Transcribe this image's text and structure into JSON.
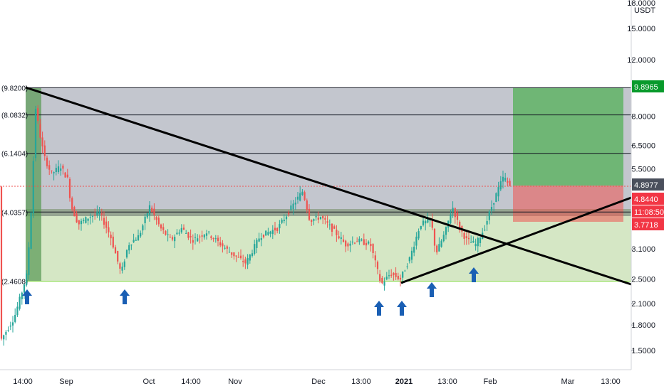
{
  "chart_data": {
    "type": "candlestick",
    "y_axis": {
      "scale": "log",
      "unit_label": "USDT",
      "range": [
        1.25,
        18.5
      ],
      "ticks": [
        "18.0000",
        "15.0000",
        "12.0000",
        "9.8965",
        "8.0000",
        "6.5000",
        "5.5000",
        "4.8977",
        "4.8440",
        "3.7718",
        "3.1000",
        "2.5000",
        "2.1000",
        "1.8000",
        "1.5000"
      ],
      "tick_values": [
        18.0,
        15.0,
        12.0,
        8.0,
        6.5,
        5.5,
        3.1,
        2.5,
        2.1,
        1.8,
        1.5
      ]
    },
    "x_axis": {
      "labels": [
        "14:00",
        "Sep",
        "Oct",
        "14:00",
        "Nov",
        "Dec",
        "13:00",
        "2021",
        "13:00",
        "Feb",
        "Mar",
        "13:00"
      ],
      "bold": [
        "2021"
      ]
    },
    "fib_levels": [
      {
        "label": "(9.8200)",
        "value": 9.82,
        "color": "#131722"
      },
      {
        "label": "(8.0832)",
        "value": 8.0832,
        "color": "#131722"
      },
      {
        "label": "(6.1404)",
        "value": 6.1404,
        "color": "#131722"
      },
      {
        "label": "(4.0357)",
        "value": 4.0357,
        "color": "#131722"
      },
      {
        "label": "(2.4608)",
        "value": 2.4608,
        "color": "#7cd63a"
      }
    ],
    "price_tags": [
      {
        "text": "9.8965",
        "value": 9.8965,
        "bg": "#089a2b"
      },
      {
        "text": "4.8977",
        "value": 4.8977,
        "bg": "#4a4f5c"
      },
      {
        "text": "4.8440",
        "value": 4.844,
        "bg": "#f23645"
      },
      {
        "text": "11:08:50",
        "value": 4.35,
        "bg": "#f23645"
      },
      {
        "text": "3.7718",
        "value": 3.7718,
        "bg": "#f23645"
      }
    ],
    "position": {
      "entry": 4.844,
      "target": 9.8965,
      "stop": 3.7718
    },
    "trendlines": [
      {
        "name": "descending-resistance",
        "from": [
          0,
          9.82
        ],
        "to": [
          1,
          2.45
        ]
      },
      {
        "name": "ascending-support",
        "from": [
          0,
          2.45
        ],
        "to": [
          1,
          4.75
        ]
      }
    ],
    "colors": {
      "up": "#26a69a",
      "down": "#ef5350",
      "zone_grey": "#b6b9c2",
      "zone_green": "#d3e6c2",
      "profit": "#4caf50",
      "loss": "#ef5350"
    }
  }
}
